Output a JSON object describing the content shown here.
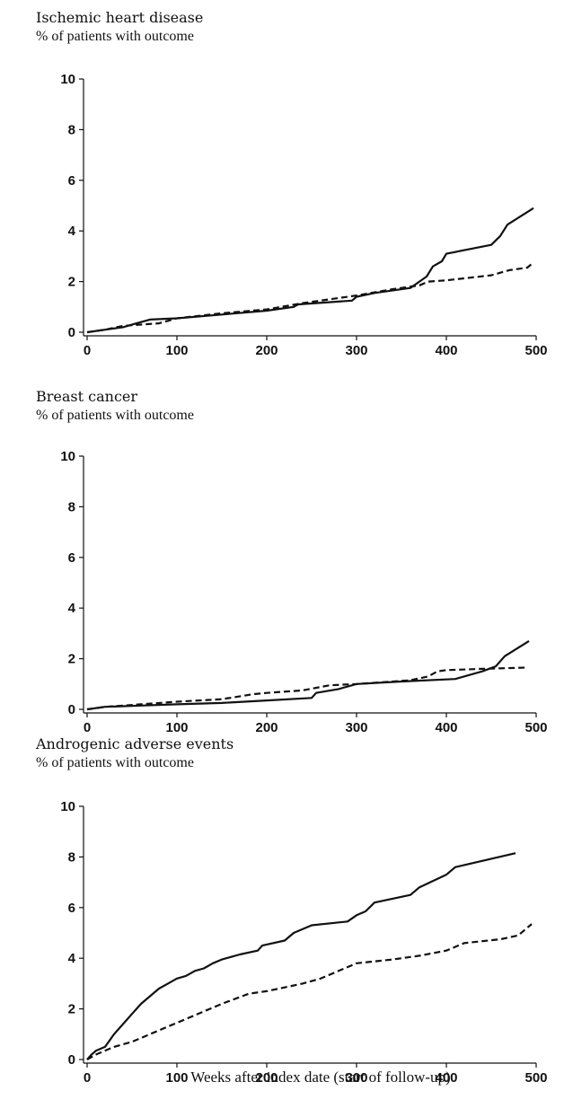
{
  "chart_data": [
    {
      "type": "line",
      "title": "Ischemic heart disease",
      "ylabel": "% of patients with outcome",
      "xlabel": "",
      "xlim": [
        0,
        500
      ],
      "ylim": [
        0,
        10
      ],
      "xticks": [
        0,
        100,
        200,
        300,
        400,
        500
      ],
      "yticks": [
        0,
        2,
        4,
        6,
        8,
        10
      ],
      "grid": false,
      "series": [
        {
          "style": "solid",
          "color": "#111111",
          "x": [
            0,
            20,
            40,
            55,
            70,
            100,
            150,
            200,
            230,
            235,
            295,
            300,
            320,
            360,
            370,
            378,
            385,
            395,
            400,
            450,
            460,
            468,
            497
          ],
          "y": [
            0,
            0.1,
            0.2,
            0.35,
            0.5,
            0.55,
            0.7,
            0.85,
            1.0,
            1.1,
            1.25,
            1.4,
            1.55,
            1.75,
            2.0,
            2.2,
            2.6,
            2.8,
            3.1,
            3.45,
            3.8,
            4.25,
            4.9
          ]
        },
        {
          "style": "dashed",
          "color": "#111111",
          "x": [
            0,
            20,
            40,
            80,
            100,
            150,
            200,
            240,
            300,
            340,
            370,
            380,
            400,
            450,
            470,
            490,
            497
          ],
          "y": [
            0,
            0.1,
            0.25,
            0.35,
            0.55,
            0.75,
            0.9,
            1.15,
            1.45,
            1.7,
            1.85,
            2.0,
            2.05,
            2.25,
            2.45,
            2.55,
            2.75
          ]
        }
      ]
    },
    {
      "type": "line",
      "title": "Breast cancer",
      "ylabel": "% of patients with outcome",
      "xlabel": "",
      "xlim": [
        0,
        500
      ],
      "ylim": [
        0,
        10
      ],
      "xticks": [
        0,
        100,
        200,
        300,
        400,
        500
      ],
      "yticks": [
        0,
        2,
        4,
        6,
        8,
        10
      ],
      "grid": false,
      "series": [
        {
          "style": "solid",
          "color": "#111111",
          "x": [
            0,
            20,
            60,
            100,
            150,
            200,
            250,
            255,
            280,
            300,
            350,
            410,
            440,
            455,
            465,
            492
          ],
          "y": [
            0,
            0.1,
            0.15,
            0.2,
            0.25,
            0.35,
            0.45,
            0.65,
            0.8,
            1.0,
            1.1,
            1.2,
            1.5,
            1.7,
            2.1,
            2.7
          ]
        },
        {
          "style": "dashed",
          "color": "#111111",
          "x": [
            0,
            20,
            60,
            100,
            150,
            185,
            200,
            240,
            270,
            300,
            360,
            380,
            390,
            400,
            440,
            490
          ],
          "y": [
            0,
            0.1,
            0.2,
            0.3,
            0.4,
            0.6,
            0.65,
            0.75,
            0.95,
            1.0,
            1.15,
            1.3,
            1.5,
            1.55,
            1.6,
            1.65
          ]
        }
      ]
    },
    {
      "type": "line",
      "title": "Androgenic adverse events",
      "ylabel": "% of patients with outcome",
      "xlabel": "Weeks after index date (start of follow-up)",
      "xlim": [
        0,
        500
      ],
      "ylim": [
        0,
        10
      ],
      "xticks": [
        0,
        100,
        200,
        300,
        400,
        500
      ],
      "yticks": [
        0,
        2,
        4,
        6,
        8,
        10
      ],
      "grid": false,
      "series": [
        {
          "style": "solid",
          "color": "#111111",
          "x": [
            0,
            5,
            10,
            20,
            30,
            40,
            50,
            60,
            70,
            80,
            90,
            100,
            110,
            120,
            130,
            140,
            150,
            160,
            170,
            190,
            195,
            220,
            230,
            250,
            290,
            300,
            310,
            320,
            360,
            370,
            400,
            410,
            477
          ],
          "y": [
            0,
            0.2,
            0.35,
            0.5,
            1.0,
            1.4,
            1.8,
            2.2,
            2.5,
            2.8,
            3.0,
            3.2,
            3.3,
            3.5,
            3.6,
            3.8,
            3.95,
            4.05,
            4.15,
            4.3,
            4.5,
            4.7,
            5.0,
            5.3,
            5.45,
            5.7,
            5.85,
            6.2,
            6.5,
            6.8,
            7.3,
            7.6,
            8.15
          ]
        },
        {
          "style": "dashed",
          "color": "#111111",
          "x": [
            0,
            10,
            30,
            50,
            70,
            90,
            110,
            130,
            150,
            180,
            200,
            240,
            260,
            280,
            300,
            340,
            370,
            400,
            410,
            420,
            460,
            480,
            495
          ],
          "y": [
            0,
            0.2,
            0.5,
            0.7,
            1.0,
            1.3,
            1.6,
            1.9,
            2.2,
            2.6,
            2.7,
            3.0,
            3.2,
            3.5,
            3.8,
            3.95,
            4.1,
            4.3,
            4.45,
            4.6,
            4.75,
            4.9,
            5.35
          ]
        }
      ]
    }
  ]
}
